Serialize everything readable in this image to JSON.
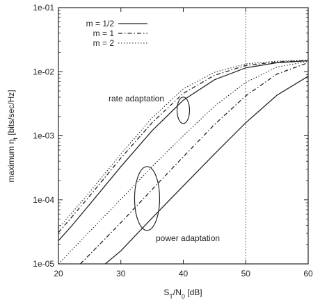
{
  "chart_data": {
    "type": "line",
    "title": "",
    "xlabel": "S_T/N_0 [dB]",
    "ylabel": "maximum η_t [bits/sec/Hz]",
    "xlim": [
      20,
      60
    ],
    "ylim": [
      1e-05,
      0.1
    ],
    "yscale": "log",
    "grid": false,
    "legend_position": "top-left",
    "x_ticks": [
      20,
      30,
      40,
      50,
      60
    ],
    "y_ticks": [
      1e-05,
      0.0001,
      0.001,
      0.01,
      0.1
    ],
    "x_tick_labels": [
      "20",
      "30",
      "40",
      "50",
      "60"
    ],
    "y_tick_labels": [
      "1e-05",
      "1e-04",
      "1e-03",
      "1e-02",
      "1e-01"
    ],
    "vertical_reference_x": 50,
    "legend": [
      {
        "label": "m = 1/2",
        "style": "solid"
      },
      {
        "label": "m = 1",
        "style": "dashdot"
      },
      {
        "label": "m = 2",
        "style": "dotted"
      }
    ],
    "series": [
      {
        "name": "m = 1/2",
        "group": "rate adaptation",
        "style": "solid",
        "x": [
          20,
          22,
          25,
          30,
          35,
          40,
          45,
          50,
          55,
          60
        ],
        "y": [
          2.3e-05,
          3.8e-05,
          8.5e-05,
          0.00033,
          0.0012,
          0.0036,
          0.0075,
          0.0115,
          0.0138,
          0.0148
        ]
      },
      {
        "name": "m = 1",
        "group": "rate adaptation",
        "style": "dashdot",
        "x": [
          20,
          22,
          25,
          30,
          35,
          40,
          45,
          50,
          55,
          60
        ],
        "y": [
          3.1e-05,
          5.2e-05,
          0.000115,
          0.00045,
          0.0016,
          0.0046,
          0.0088,
          0.0125,
          0.0142,
          0.015
        ]
      },
      {
        "name": "m = 2",
        "group": "rate adaptation",
        "style": "dotted",
        "x": [
          20,
          22,
          25,
          30,
          35,
          40,
          45,
          50,
          55,
          60
        ],
        "y": [
          3.6e-05,
          6e-05,
          0.000132,
          0.00052,
          0.0019,
          0.0054,
          0.0098,
          0.0132,
          0.0146,
          0.0152
        ]
      },
      {
        "name": "m = 1/2",
        "group": "power adaptation",
        "style": "solid",
        "x": [
          27.5,
          30,
          35,
          40,
          45,
          50,
          55,
          60
        ],
        "y": [
          1e-05,
          1.6e-05,
          5.2e-05,
          0.000165,
          0.00052,
          0.0016,
          0.0043,
          0.0085
        ]
      },
      {
        "name": "m = 1",
        "group": "power adaptation",
        "style": "dashdot",
        "x": [
          23.5,
          25,
          30,
          35,
          40,
          45,
          50,
          55,
          60
        ],
        "y": [
          1e-05,
          1.4e-05,
          4.4e-05,
          0.000145,
          0.00047,
          0.0015,
          0.0042,
          0.0092,
          0.0138
        ]
      },
      {
        "name": "m = 2",
        "group": "power adaptation",
        "style": "dotted",
        "x": [
          20,
          22,
          25,
          30,
          35,
          40,
          45,
          50,
          55,
          60
        ],
        "y": [
          1e-05,
          1.6e-05,
          3.2e-05,
          0.000102,
          0.00033,
          0.001,
          0.0029,
          0.0068,
          0.0118,
          0.0145
        ]
      }
    ],
    "annotations": [
      {
        "text": "rate adaptation",
        "ellipse_center": [
          40,
          0.0025
        ]
      },
      {
        "text": "power adaptation",
        "ellipse_center": [
          34.2,
          0.000105
        ]
      }
    ]
  }
}
